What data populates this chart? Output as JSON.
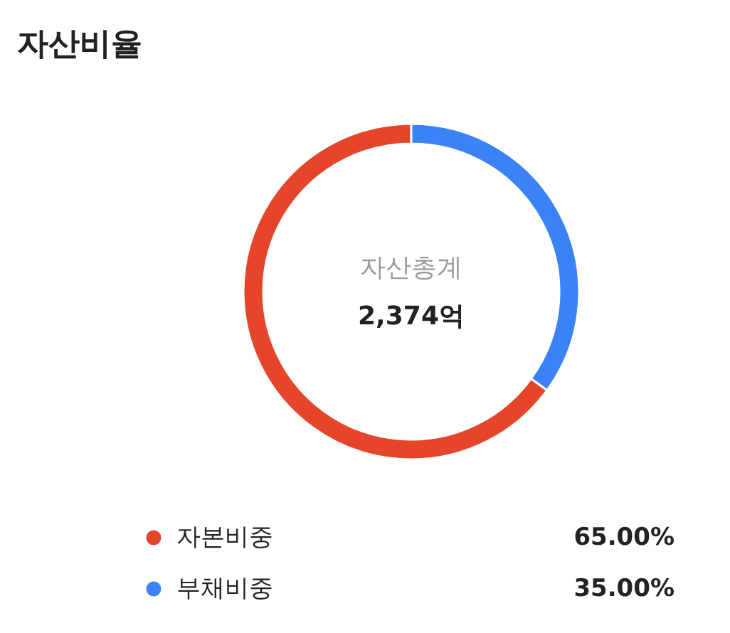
{
  "chart_data": {
    "type": "donut",
    "title": "자산비율",
    "categories": [
      "자본비중",
      "부채비중"
    ],
    "values": [
      65,
      35
    ],
    "colors": [
      "#e5452b",
      "#3b82f6"
    ],
    "value_labels": [
      "65.00%",
      "35.00%"
    ],
    "annotations": [
      "자산총계",
      "2,374억"
    ],
    "legend": "bottom"
  }
}
